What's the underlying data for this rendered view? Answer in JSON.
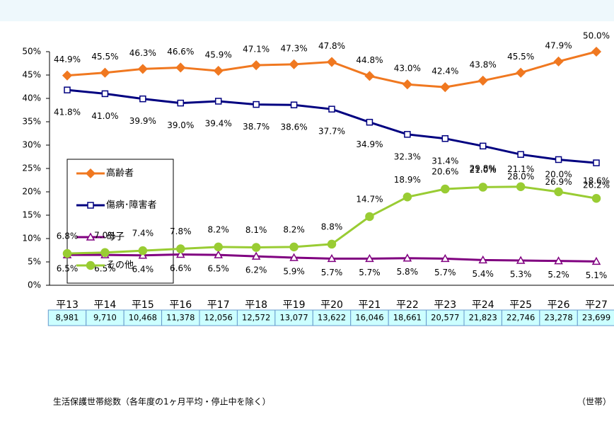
{
  "chart_data": {
    "type": "line",
    "categories": [
      "平13",
      "平14",
      "平15",
      "平16",
      "平17",
      "平18",
      "平19",
      "平20",
      "平21",
      "平22",
      "平23",
      "平24",
      "平25",
      "平26",
      "平27"
    ],
    "ylim": [
      0,
      50
    ],
    "yticks": [
      {
        "value": 0,
        "label": "0%"
      },
      {
        "value": 5,
        "label": "5%"
      },
      {
        "value": 10,
        "label": "10%"
      },
      {
        "value": 15,
        "label": "15%"
      },
      {
        "value": 20,
        "label": "20%"
      },
      {
        "value": 25,
        "label": "25%"
      },
      {
        "value": 30,
        "label": "30%"
      },
      {
        "value": 35,
        "label": "35%"
      },
      {
        "value": 40,
        "label": "40%"
      },
      {
        "value": 45,
        "label": "45%"
      },
      {
        "value": 50,
        "label": "50%"
      }
    ],
    "legend": "left",
    "series": [
      {
        "name": "高齢者",
        "color": "#f07820",
        "marker": "diamond",
        "values": [
          44.9,
          45.5,
          46.3,
          46.6,
          45.9,
          47.1,
          47.3,
          47.8,
          44.8,
          43.0,
          42.4,
          43.8,
          45.5,
          47.9,
          50.0
        ],
        "value_labels": [
          "44.9%",
          "45.5%",
          "46.3%",
          "46.6%",
          "45.9%",
          "47.1%",
          "47.3%",
          "47.8%",
          "44.8%",
          "43.0%",
          "42.4%",
          "43.8%",
          "45.5%",
          "47.9%",
          "50.0%"
        ]
      },
      {
        "name": "傷病･障害者",
        "color": "#000080",
        "marker": "square",
        "values": [
          41.8,
          41.0,
          39.9,
          39.0,
          39.4,
          38.7,
          38.6,
          37.7,
          34.9,
          32.3,
          31.4,
          29.8,
          28.0,
          26.9,
          26.2
        ],
        "value_labels": [
          "41.8%",
          "41.0%",
          "39.9%",
          "39.0%",
          "39.4%",
          "38.7%",
          "38.6%",
          "37.7%",
          "34.9%",
          "32.3%",
          "31.4%",
          "29.8%",
          "28.0%",
          "26.9%",
          "26.2%"
        ]
      },
      {
        "name": "母子",
        "color": "#800080",
        "marker": "triangle",
        "values": [
          6.5,
          6.5,
          6.4,
          6.6,
          6.5,
          6.2,
          5.9,
          5.7,
          5.7,
          5.8,
          5.7,
          5.4,
          5.3,
          5.2,
          5.1
        ],
        "value_labels": [
          "6.5%",
          "6.5%",
          "6.4%",
          "6.6%",
          "6.5%",
          "6.2%",
          "5.9%",
          "5.7%",
          "5.7%",
          "5.8%",
          "5.7%",
          "5.4%",
          "5.3%",
          "5.2%",
          "5.1%"
        ]
      },
      {
        "name": "その他",
        "color": "#99cc33",
        "marker": "circle",
        "values": [
          6.8,
          7.0,
          7.4,
          7.8,
          8.2,
          8.1,
          8.2,
          8.8,
          14.7,
          18.9,
          20.6,
          21.0,
          21.1,
          20.0,
          18.6
        ],
        "value_labels": [
          "6.8%",
          "7.0%",
          "7.4%",
          "7.8%",
          "8.2%",
          "8.1%",
          "8.2%",
          "8.8%",
          "14.7%",
          "18.9%",
          "20.6%",
          "21.0%",
          "21.1%",
          "20.0%",
          "18.6%"
        ]
      }
    ],
    "table": {
      "households": [
        "8,981",
        "9,710",
        "10,468",
        "11,378",
        "12,056",
        "12,572",
        "13,077",
        "13,622",
        "16,046",
        "18,661",
        "20,577",
        "21,823",
        "22,746",
        "23,278",
        "23,699"
      ],
      "caption": "生活保護世帯総数（各年度の1ヶ月平均・停止中を除く）",
      "unit": "（世帯）"
    }
  }
}
